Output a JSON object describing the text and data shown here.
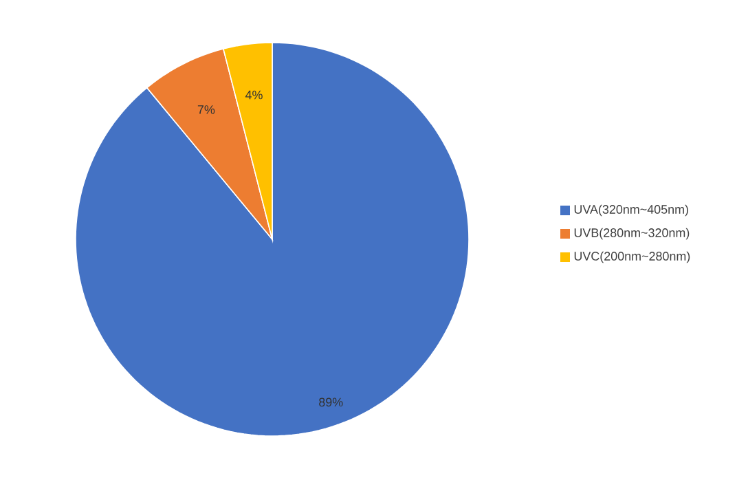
{
  "chart_data": {
    "type": "pie",
    "categories": [
      "UVA(320nm~405nm)",
      "UVB(280nm~320nm)",
      "UVC(200nm~280nm)"
    ],
    "values": [
      89,
      7,
      4
    ],
    "colors": [
      "#4472c4",
      "#ed7d31",
      "#ffc000"
    ],
    "value_labels": [
      "89%",
      "7%",
      "4%"
    ],
    "legend": "right"
  }
}
